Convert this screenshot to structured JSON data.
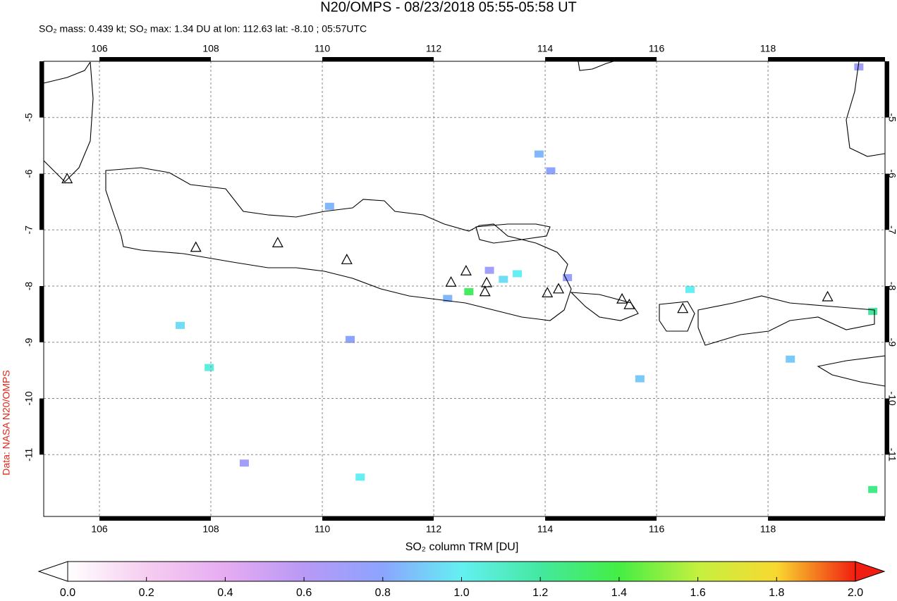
{
  "map": {
    "title": "N20/OMPS - 08/23/2018 05:55-05:58 UT",
    "subtitle": "SO₂ mass: 0.439 kt; SO₂ max: 1.34 DU at lon: 112.63 lat: -8.10 ; 05:57UTC",
    "source": "Data: NASA N20/OMPS",
    "xlim": [
      105,
      120.1
    ],
    "ylim": [
      -12.1,
      -4
    ],
    "xticks": [
      106,
      108,
      110,
      112,
      114,
      116,
      118
    ],
    "yticks": [
      -5,
      -6,
      -7,
      -8,
      -9,
      -10,
      -11
    ],
    "grid": true,
    "volcanoes": [
      {
        "lon": 105.42,
        "lat": -6.1
      },
      {
        "lon": 107.73,
        "lat": -7.32
      },
      {
        "lon": 109.2,
        "lat": -7.24
      },
      {
        "lon": 110.44,
        "lat": -7.54
      },
      {
        "lon": 112.31,
        "lat": -7.94
      },
      {
        "lon": 112.58,
        "lat": -7.74
      },
      {
        "lon": 112.95,
        "lat": -7.95
      },
      {
        "lon": 112.92,
        "lat": -8.11
      },
      {
        "lon": 114.04,
        "lat": -8.13
      },
      {
        "lon": 114.24,
        "lat": -8.06
      },
      {
        "lon": 115.38,
        "lat": -8.24
      },
      {
        "lon": 115.51,
        "lat": -8.34
      },
      {
        "lon": 116.47,
        "lat": -8.41
      },
      {
        "lon": 119.07,
        "lat": -8.2
      }
    ],
    "pixels": [
      {
        "lon": 112.63,
        "lat": -8.1,
        "value": 1.34
      },
      {
        "lon": 113.5,
        "lat": -7.78,
        "value": 1.0
      },
      {
        "lon": 113.25,
        "lat": -7.88,
        "value": 0.95
      },
      {
        "lon": 107.97,
        "lat": -9.45,
        "value": 1.05
      },
      {
        "lon": 107.45,
        "lat": -8.7,
        "value": 0.95
      },
      {
        "lon": 119.88,
        "lat": -8.45,
        "value": 1.2
      },
      {
        "lon": 119.88,
        "lat": -11.62,
        "value": 1.25
      },
      {
        "lon": 110.68,
        "lat": -11.4,
        "value": 1.0
      },
      {
        "lon": 113.89,
        "lat": -5.65,
        "value": 0.85
      },
      {
        "lon": 114.1,
        "lat": -5.95,
        "value": 0.8
      },
      {
        "lon": 110.13,
        "lat": -6.58,
        "value": 0.85
      },
      {
        "lon": 116.6,
        "lat": -8.06,
        "value": 1.0
      },
      {
        "lon": 119.63,
        "lat": -4.1,
        "value": 0.7
      },
      {
        "lon": 113.0,
        "lat": -7.72,
        "value": 0.7
      },
      {
        "lon": 114.4,
        "lat": -7.85,
        "value": 0.75
      },
      {
        "lon": 110.5,
        "lat": -8.95,
        "value": 0.8
      },
      {
        "lon": 118.4,
        "lat": -9.3,
        "value": 0.9
      },
      {
        "lon": 115.7,
        "lat": -9.65,
        "value": 0.9
      },
      {
        "lon": 108.6,
        "lat": -11.15,
        "value": 0.7
      },
      {
        "lon": 112.25,
        "lat": -8.22,
        "value": 0.85
      }
    ],
    "colorbar": {
      "label": "SO₂ column TRM [DU]",
      "lim": [
        0,
        2
      ],
      "ticks": [
        {
          "value": 0,
          "label": "0.0"
        },
        0.2,
        0.4,
        0.6,
        0.8,
        {
          "value": 1,
          "label": "1.0"
        },
        1.2,
        1.4,
        1.6,
        1.8,
        {
          "value": 2,
          "label": "2.0"
        }
      ],
      "colormap": [
        "#ffffff",
        "#f6cdf0",
        "#e6acf2",
        "#b899f5",
        "#8ca4ff",
        "#64f0f2",
        "#44e8a0",
        "#44ee44",
        "#c4f040",
        "#f8d830",
        "#f01e10"
      ]
    }
  }
}
